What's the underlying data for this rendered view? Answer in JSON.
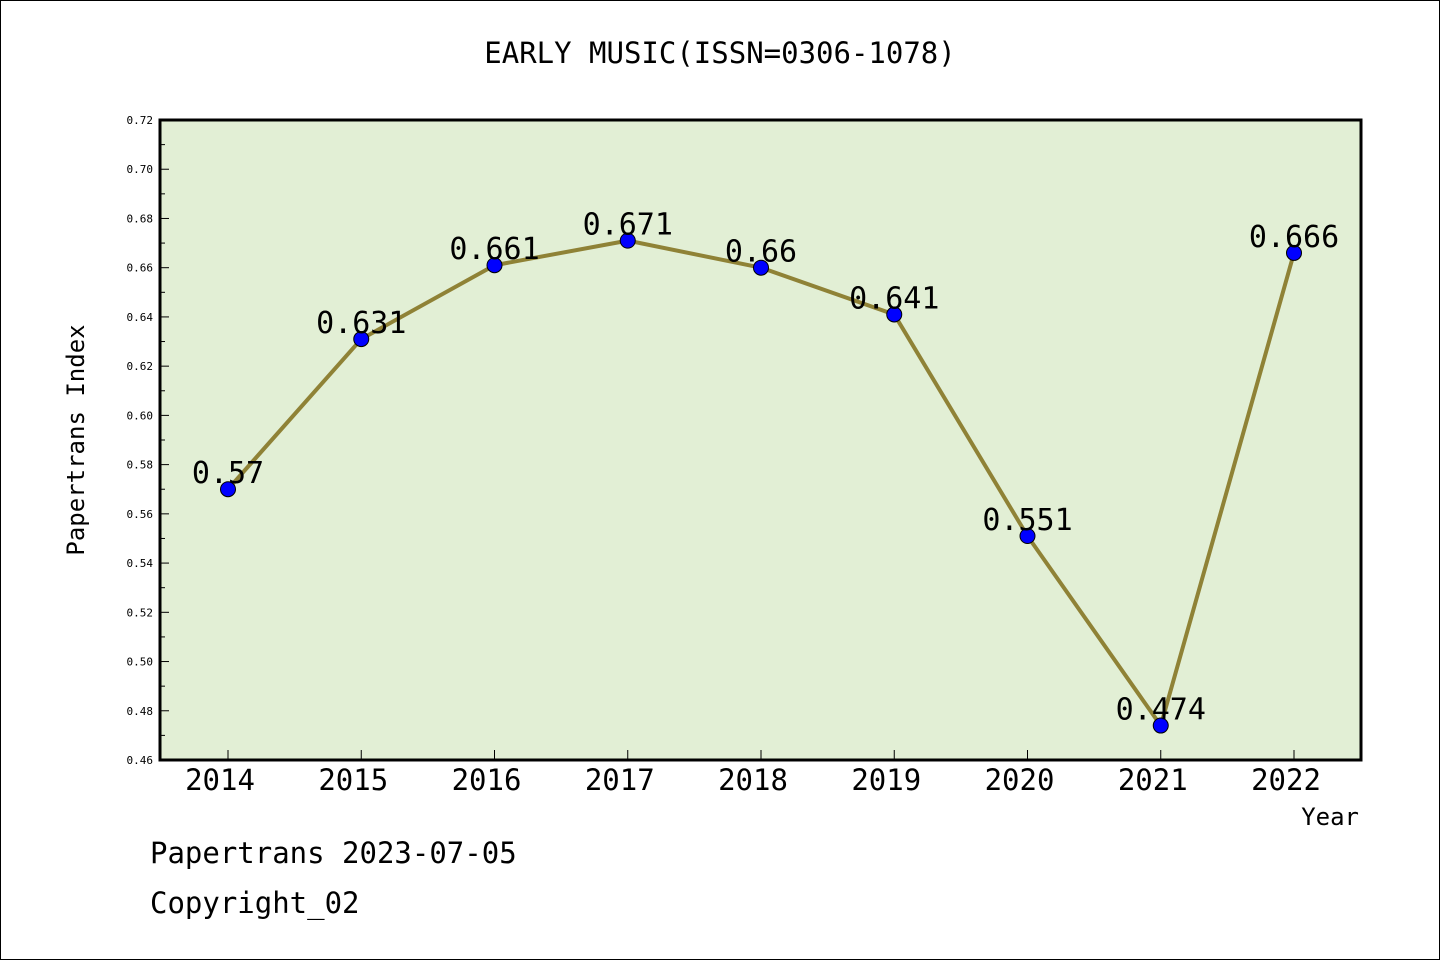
{
  "chart_data": {
    "type": "line",
    "title": "EARLY MUSIC(ISSN=0306-1078)",
    "xlabel": "Year",
    "ylabel": "Papertrans Index",
    "categories": [
      "2014",
      "2015",
      "2016",
      "2017",
      "2018",
      "2019",
      "2020",
      "2021",
      "2022"
    ],
    "series": [
      {
        "values": [
          0.57,
          0.631,
          0.661,
          0.671,
          0.66,
          0.641,
          0.551,
          0.474,
          0.666
        ],
        "labels": [
          "0.57",
          "0.631",
          "0.661",
          "0.671",
          "0.66",
          "0.641",
          "0.551",
          "0.474",
          "0.666"
        ]
      }
    ],
    "ylim": [
      0.46,
      0.72
    ],
    "yticks": [
      "0.46",
      "0.48",
      "0.50",
      "0.52",
      "0.54",
      "0.56",
      "0.58",
      "0.60",
      "0.62",
      "0.64",
      "0.66",
      "0.68",
      "0.70",
      "0.72"
    ],
    "grid": false,
    "colors": {
      "plot_background": "#e2efd5",
      "line": "#8f8236",
      "marker": "#0000ff"
    }
  },
  "footer": {
    "line1": "Papertrans 2023-07-05",
    "line2": "Copyright_02"
  }
}
